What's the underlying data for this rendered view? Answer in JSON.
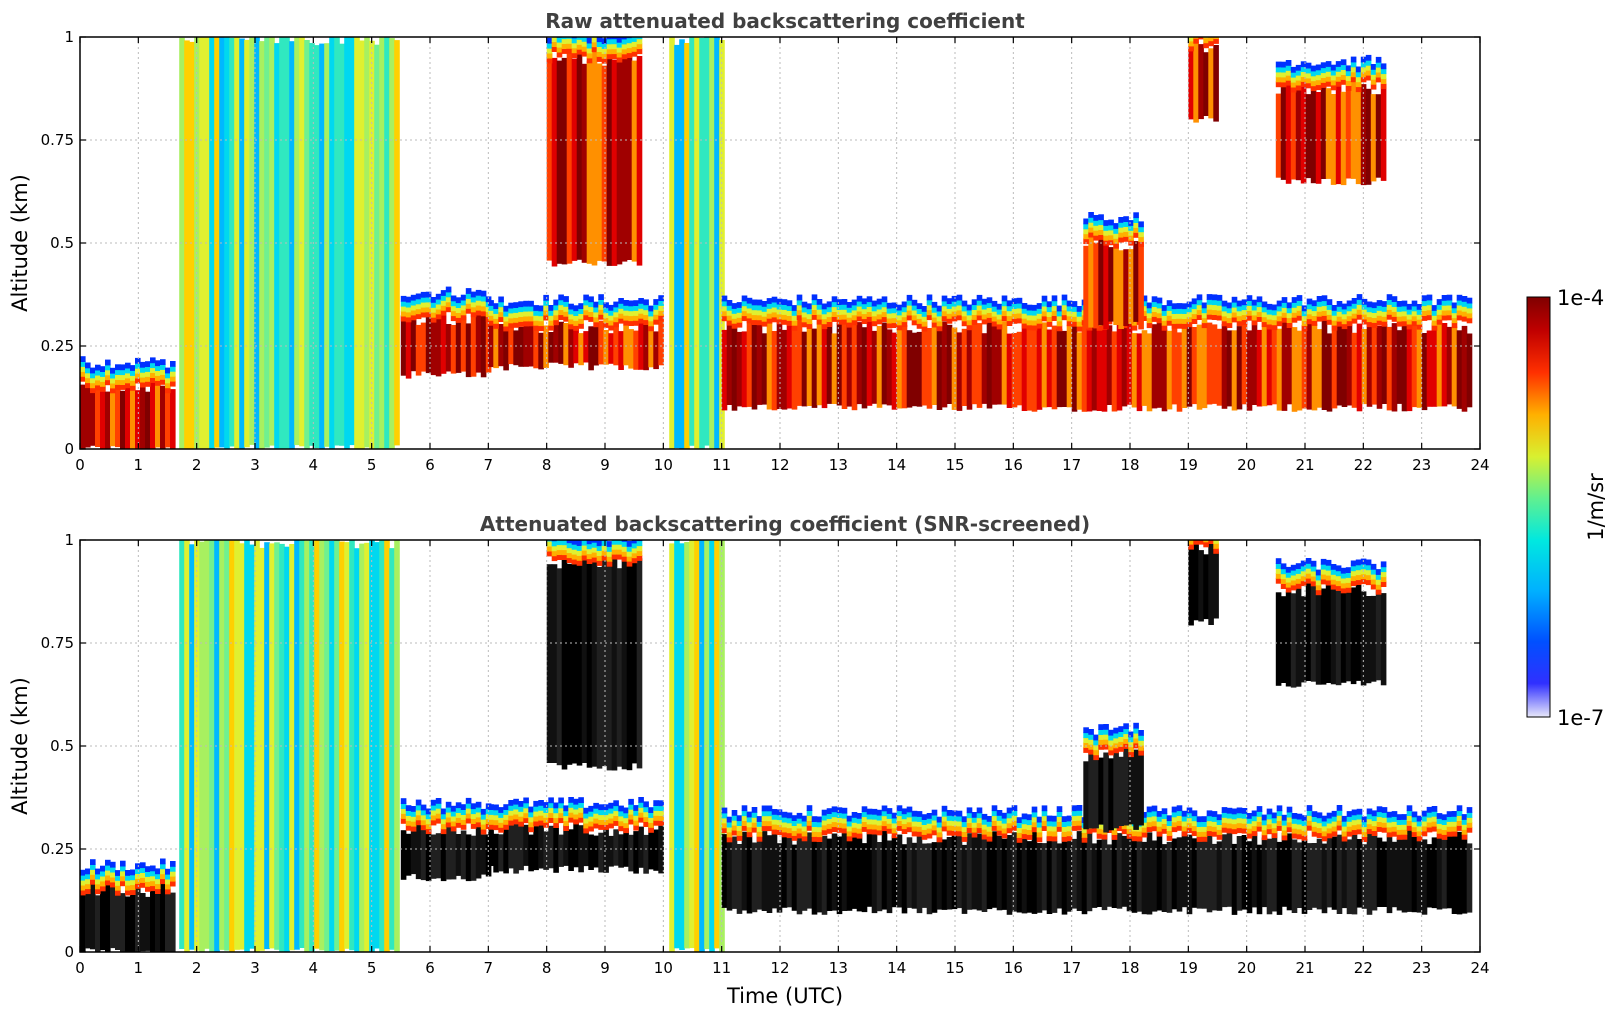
{
  "chart_data": [
    {
      "type": "heatmap",
      "title": "Raw attenuated backscattering coefficient",
      "ylabel": "Altitude (km)",
      "xlabel": "",
      "xlim": [
        0,
        24
      ],
      "ylim": [
        0,
        1
      ],
      "x_ticks": [
        "0",
        "1",
        "2",
        "3",
        "4",
        "5",
        "6",
        "7",
        "8",
        "9",
        "10",
        "11",
        "12",
        "13",
        "14",
        "15",
        "16",
        "17",
        "18",
        "19",
        "20",
        "21",
        "22",
        "23",
        "24"
      ],
      "y_ticks": [
        "0",
        "0.25",
        "0.5",
        "0.75",
        "1"
      ],
      "grid": true,
      "features": [
        {
          "time_start": 0.0,
          "time_end": 1.6,
          "alt_low": 0.0,
          "alt_high": 0.15,
          "level": "high"
        },
        {
          "time_start": 1.7,
          "time_end": 5.4,
          "alt_low": 0.0,
          "alt_high": 1.0,
          "level": "medium"
        },
        {
          "time_start": 5.5,
          "time_end": 7.0,
          "alt_low": 0.18,
          "alt_high": 0.32,
          "level": "high"
        },
        {
          "time_start": 7.0,
          "time_end": 10.0,
          "alt_low": 0.2,
          "alt_high": 0.3,
          "level": "high"
        },
        {
          "time_start": 8.0,
          "time_end": 9.6,
          "alt_low": 0.45,
          "alt_high": 0.95,
          "level": "high"
        },
        {
          "time_start": 10.1,
          "time_end": 11.0,
          "alt_low": 0.0,
          "alt_high": 1.0,
          "level": "medium"
        },
        {
          "time_start": 11.0,
          "time_end": 23.8,
          "alt_low": 0.1,
          "alt_high": 0.3,
          "level": "high"
        },
        {
          "time_start": 17.2,
          "time_end": 18.2,
          "alt_low": 0.3,
          "alt_high": 0.5,
          "level": "high"
        },
        {
          "time_start": 19.0,
          "time_end": 19.5,
          "alt_low": 0.8,
          "alt_high": 0.98,
          "level": "high"
        },
        {
          "time_start": 20.5,
          "time_end": 22.3,
          "alt_low": 0.65,
          "alt_high": 0.88,
          "level": "high"
        }
      ]
    },
    {
      "type": "heatmap",
      "title": "Attenuated backscattering coefficient (SNR-screened)",
      "ylabel": "Altitude (km)",
      "xlabel": "Time (UTC)",
      "xlim": [
        0,
        24
      ],
      "ylim": [
        0,
        1
      ],
      "x_ticks": [
        "0",
        "1",
        "2",
        "3",
        "4",
        "5",
        "6",
        "7",
        "8",
        "9",
        "10",
        "11",
        "12",
        "13",
        "14",
        "15",
        "16",
        "17",
        "18",
        "19",
        "20",
        "21",
        "22",
        "23",
        "24"
      ],
      "y_ticks": [
        "0",
        "0.25",
        "0.5",
        "0.75",
        "1"
      ],
      "grid": true,
      "features": [
        {
          "time_start": 0.0,
          "time_end": 1.6,
          "alt_low": 0.0,
          "alt_high": 0.15,
          "level": "saturated"
        },
        {
          "time_start": 1.7,
          "time_end": 5.4,
          "alt_low": 0.0,
          "alt_high": 1.0,
          "level": "medium"
        },
        {
          "time_start": 5.5,
          "time_end": 7.0,
          "alt_low": 0.18,
          "alt_high": 0.3,
          "level": "saturated"
        },
        {
          "time_start": 7.0,
          "time_end": 10.0,
          "alt_low": 0.2,
          "alt_high": 0.3,
          "level": "saturated"
        },
        {
          "time_start": 8.0,
          "time_end": 9.6,
          "alt_low": 0.45,
          "alt_high": 0.95,
          "level": "saturated"
        },
        {
          "time_start": 10.1,
          "time_end": 11.0,
          "alt_low": 0.0,
          "alt_high": 1.0,
          "level": "medium"
        },
        {
          "time_start": 11.0,
          "time_end": 23.8,
          "alt_low": 0.1,
          "alt_high": 0.28,
          "level": "saturated"
        },
        {
          "time_start": 17.2,
          "time_end": 18.2,
          "alt_low": 0.3,
          "alt_high": 0.48,
          "level": "saturated"
        },
        {
          "time_start": 19.0,
          "time_end": 19.5,
          "alt_low": 0.8,
          "alt_high": 0.98,
          "level": "saturated"
        },
        {
          "time_start": 20.5,
          "time_end": 22.3,
          "alt_low": 0.65,
          "alt_high": 0.88,
          "level": "saturated"
        }
      ]
    }
  ],
  "colorbar": {
    "max_label": "1e-4",
    "min_label": "1e-7",
    "unit_label": "1/m/sr",
    "scale": "log",
    "colors": [
      "#e8e8fa",
      "#0010ff",
      "#00a0ff",
      "#00e8f0",
      "#40f0a0",
      "#c0f040",
      "#ffe000",
      "#ff8000",
      "#ff1000",
      "#800000"
    ]
  }
}
